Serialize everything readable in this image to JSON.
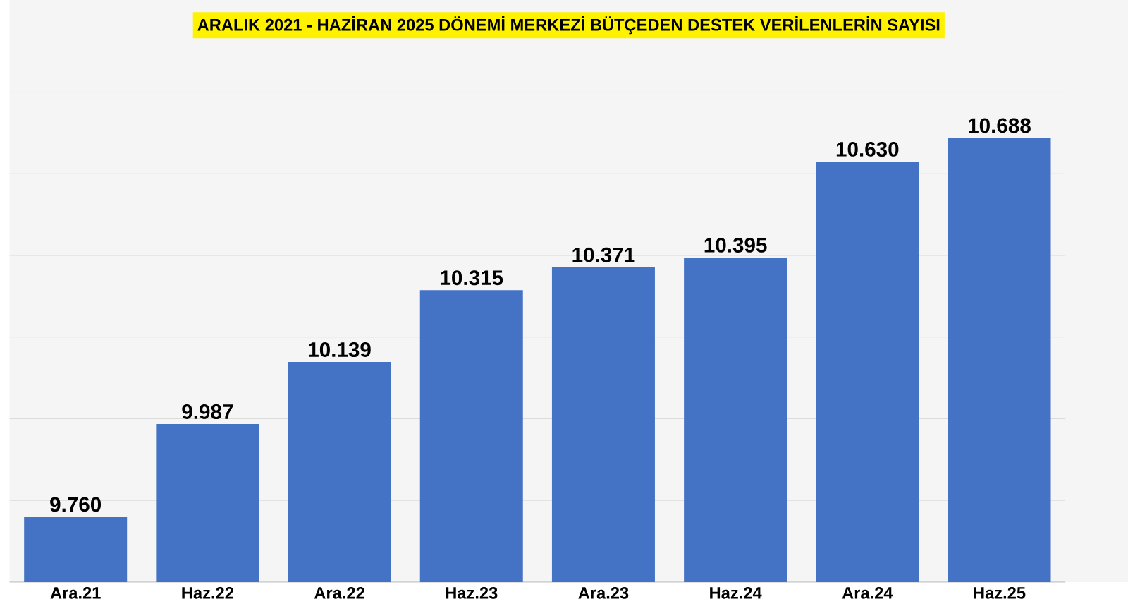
{
  "chart_data": {
    "type": "bar",
    "title": "ARALIK 2021 - HAZİRAN 2025 DÖNEMİ MERKEZİ BÜTÇEDEN DESTEK VERİLENLERİN SAYISI",
    "categories": [
      "Ara.21",
      "Haz.22",
      "Ara.22",
      "Haz.23",
      "Ara.23",
      "Haz.24",
      "Ara.24",
      "Haz.25"
    ],
    "values": [
      9760,
      9987,
      10139,
      10315,
      10371,
      10395,
      10630,
      10688
    ],
    "value_labels": [
      "9.760",
      "9.987",
      "10.139",
      "10.315",
      "10.371",
      "10.395",
      "10.630",
      "10.688"
    ],
    "color": "#4472c4",
    "ylim": [
      9600,
      10800
    ],
    "yticks": [
      {
        "value": 9600,
        "label": null
      },
      {
        "value": 9800,
        "label": null
      },
      {
        "value": 10000,
        "label": null
      },
      {
        "value": 10200,
        "label": null
      },
      {
        "value": 10400,
        "label": null
      },
      {
        "value": 10600,
        "label": null
      },
      {
        "value": 10800,
        "label": null
      }
    ],
    "grid": "y",
    "tick_labels": "x"
  }
}
